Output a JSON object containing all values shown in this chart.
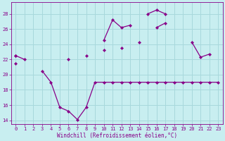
{
  "xlabel": "Windchill (Refroidissement éolien,°C)",
  "bg_color": "#c8eef0",
  "grid_color": "#a8d8dc",
  "line_color": "#880088",
  "ylim": [
    13.5,
    29.5
  ],
  "xlim": [
    -0.5,
    23.5
  ],
  "yticks": [
    14,
    16,
    18,
    20,
    22,
    24,
    26,
    28
  ],
  "xticks": [
    0,
    1,
    2,
    3,
    4,
    5,
    6,
    7,
    8,
    9,
    10,
    11,
    12,
    13,
    14,
    15,
    16,
    17,
    18,
    19,
    20,
    21,
    22,
    23
  ],
  "curve_upper_x": [
    0,
    1,
    2,
    3,
    4,
    5,
    6,
    7,
    8,
    9,
    10,
    11,
    12,
    13,
    14,
    15,
    16,
    17,
    18,
    19,
    20,
    21,
    22,
    23
  ],
  "curve_upper_y": [
    22.5,
    null,
    null,
    null,
    null,
    null,
    null,
    null,
    null,
    null,
    24.5,
    27.2,
    26.2,
    26.5,
    null,
    28.0,
    28.5,
    28.0,
    null,
    null,
    24.3,
    22.3,
    22.7,
    null
  ],
  "curve_mid_x": [
    0,
    1,
    2,
    3,
    4,
    5,
    6,
    7,
    8,
    9,
    10,
    11,
    12,
    13,
    14,
    15,
    16,
    17,
    18,
    19,
    20,
    21,
    22,
    23
  ],
  "curve_mid_y": [
    21.5,
    null,
    null,
    null,
    null,
    null,
    22.0,
    null,
    22.5,
    null,
    23.2,
    null,
    23.5,
    null,
    24.3,
    null,
    26.2,
    26.8,
    null,
    null,
    null,
    null,
    null,
    null
  ],
  "curve_lower_x": [
    0,
    1,
    2,
    3,
    4,
    5,
    6,
    7,
    8,
    9,
    10,
    11,
    12,
    13,
    14,
    15,
    16,
    17,
    18,
    19,
    20,
    21,
    22,
    23
  ],
  "curve_lower_y": [
    22.5,
    22.0,
    null,
    20.5,
    19.0,
    15.7,
    15.2,
    14.1,
    15.7,
    19.0,
    19.0,
    19.0,
    19.0,
    19.0,
    19.0,
    19.0,
    19.0,
    19.0,
    19.0,
    19.0,
    19.0,
    19.0,
    19.0,
    19.0
  ]
}
